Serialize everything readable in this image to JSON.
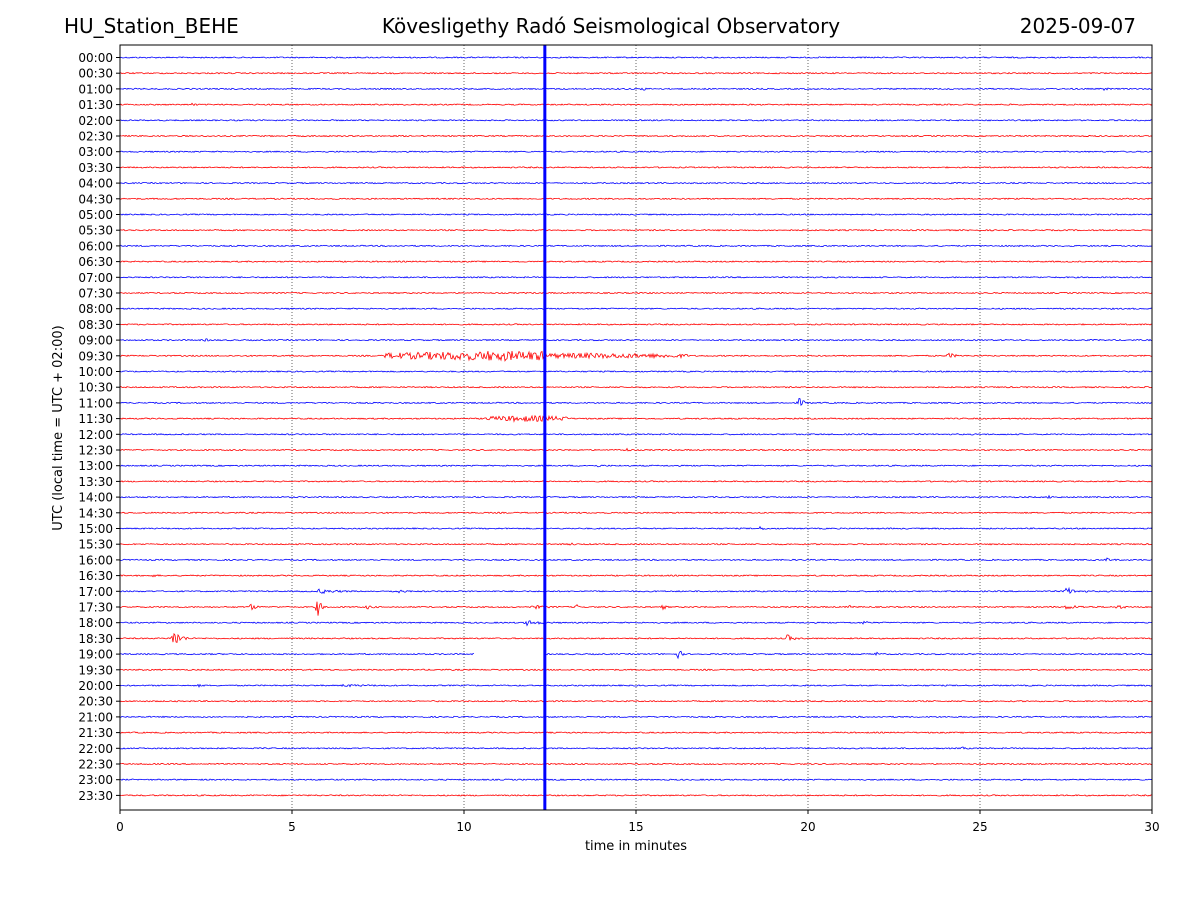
{
  "header": {
    "station": "HU_Station_BEHE",
    "observatory": "Kövesligethy Radó Seismological Observatory",
    "date": "2025-09-07"
  },
  "chart_data": {
    "type": "line",
    "title": "Kövesligethy Radó Seismological Observatory",
    "xlabel": "time in minutes",
    "ylabel": "UTC (local time = UTC + 02:00)",
    "xlim": [
      0,
      30
    ],
    "x_ticks": [
      0,
      5,
      10,
      15,
      20,
      25,
      30
    ],
    "grid": "vertical dotted",
    "row_labels": [
      "00:00",
      "00:30",
      "01:00",
      "01:30",
      "02:00",
      "02:30",
      "03:00",
      "03:30",
      "04:00",
      "04:30",
      "05:00",
      "05:30",
      "06:00",
      "06:30",
      "07:00",
      "07:30",
      "08:00",
      "08:30",
      "09:00",
      "09:30",
      "10:00",
      "10:30",
      "11:00",
      "11:30",
      "12:00",
      "12:30",
      "13:00",
      "13:30",
      "14:00",
      "14:30",
      "15:00",
      "15:30",
      "16:00",
      "16:30",
      "17:00",
      "17:30",
      "18:00",
      "18:30",
      "19:00",
      "19:30",
      "20:00",
      "20:30",
      "21:00",
      "21:30",
      "22:00",
      "22:30",
      "23:00",
      "23:30"
    ],
    "colors": {
      "even_rows": "#0000ff",
      "odd_rows": "#ff0000"
    },
    "data_gap": {
      "row": "19:00",
      "from_minute": 10.3,
      "to_minute": 12.35
    },
    "vertical_marker": {
      "minute": 12.35,
      "color": "#0000ff",
      "from_row": "00:00",
      "to_row": "23:30"
    },
    "events": [
      {
        "row": "01:00",
        "minute": 15.2,
        "amp": 0.15,
        "dur": 0.3
      },
      {
        "row": "01:00",
        "minute": 28.6,
        "amp": 0.15,
        "dur": 0.3
      },
      {
        "row": "01:30",
        "minute": 2.1,
        "amp": 0.2,
        "dur": 0.2
      },
      {
        "row": "09:00",
        "minute": 2.5,
        "amp": 0.15,
        "dur": 0.2
      },
      {
        "row": "09:30",
        "minute": 10.0,
        "amp": 0.55,
        "dur": 2.3,
        "shape": "envelope"
      },
      {
        "row": "09:30",
        "minute": 13.5,
        "amp": 0.3,
        "dur": 3.0,
        "shape": "envelope"
      },
      {
        "row": "09:30",
        "minute": 24.1,
        "amp": 0.4,
        "dur": 0.4
      },
      {
        "row": "11:00",
        "minute": 19.75,
        "amp": 0.65,
        "dur": 0.35
      },
      {
        "row": "11:30",
        "minute": 11.8,
        "amp": 0.35,
        "dur": 1.2,
        "shape": "envelope"
      },
      {
        "row": "12:30",
        "minute": 14.7,
        "amp": 0.3,
        "dur": 0.2
      },
      {
        "row": "13:00",
        "minute": 13.9,
        "amp": 0.12,
        "dur": 0.3
      },
      {
        "row": "14:00",
        "minute": 27.0,
        "amp": 0.15,
        "dur": 0.4
      },
      {
        "row": "15:00",
        "minute": 18.6,
        "amp": 0.2,
        "dur": 0.3
      },
      {
        "row": "15:30",
        "minute": 13.1,
        "amp": 0.2,
        "dur": 0.2
      },
      {
        "row": "16:00",
        "minute": 28.7,
        "amp": 0.2,
        "dur": 0.4
      },
      {
        "row": "16:30",
        "minute": 0.9,
        "amp": 0.15,
        "dur": 0.4
      },
      {
        "row": "17:00",
        "minute": 5.8,
        "amp": 0.3,
        "dur": 1.0
      },
      {
        "row": "17:00",
        "minute": 8.0,
        "amp": 0.25,
        "dur": 0.6
      },
      {
        "row": "17:00",
        "minute": 27.5,
        "amp": 0.5,
        "dur": 0.7
      },
      {
        "row": "17:30",
        "minute": 3.8,
        "amp": 0.45,
        "dur": 0.35
      },
      {
        "row": "17:30",
        "minute": 5.75,
        "amp": 1.3,
        "dur": 0.25
      },
      {
        "row": "17:30",
        "minute": 7.2,
        "amp": 0.25,
        "dur": 0.3
      },
      {
        "row": "17:30",
        "minute": 12.0,
        "amp": 0.25,
        "dur": 0.8
      },
      {
        "row": "17:30",
        "minute": 13.3,
        "amp": 0.35,
        "dur": 0.25
      },
      {
        "row": "17:30",
        "minute": 15.8,
        "amp": 0.3,
        "dur": 0.2
      },
      {
        "row": "17:30",
        "minute": 21.2,
        "amp": 0.25,
        "dur": 0.2
      },
      {
        "row": "17:30",
        "minute": 27.5,
        "amp": 0.25,
        "dur": 1.0
      },
      {
        "row": "17:30",
        "minute": 29.0,
        "amp": 0.3,
        "dur": 0.4
      },
      {
        "row": "18:00",
        "minute": 11.8,
        "amp": 0.35,
        "dur": 0.9
      },
      {
        "row": "18:00",
        "minute": 21.6,
        "amp": 0.3,
        "dur": 0.3
      },
      {
        "row": "18:30",
        "minute": 1.55,
        "amp": 1.4,
        "dur": 0.5
      },
      {
        "row": "18:30",
        "minute": 19.4,
        "amp": 0.5,
        "dur": 0.4
      },
      {
        "row": "19:00",
        "minute": 16.25,
        "amp": 1.0,
        "dur": 0.15
      },
      {
        "row": "19:00",
        "minute": 22.0,
        "amp": 0.3,
        "dur": 0.1
      },
      {
        "row": "20:00",
        "minute": 2.3,
        "amp": 0.12,
        "dur": 0.3
      },
      {
        "row": "20:00",
        "minute": 6.5,
        "amp": 0.12,
        "dur": 1.5
      },
      {
        "row": "22:00",
        "minute": 24.5,
        "amp": 0.15,
        "dur": 0.2
      }
    ]
  }
}
